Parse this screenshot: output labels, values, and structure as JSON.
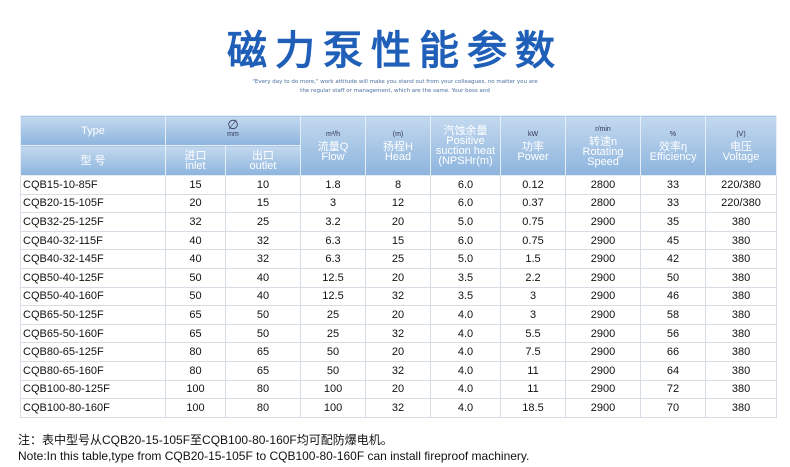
{
  "header": {
    "title": "磁力泵性能参数",
    "slogan": [
      "\"Every day to do more,\" work attitude will make you stand out from your colleagues, no matter you are",
      "the regular staff or management, which are the same. Your boss and"
    ]
  },
  "table": {
    "columns": [
      {
        "en": "Type",
        "cn": "型 号"
      },
      {
        "cn": "进口",
        "en": "inlet"
      },
      {
        "cn": "出口",
        "en": "outlet"
      },
      {
        "unit": "m³/h",
        "cn": "流量Q",
        "en": "Flow"
      },
      {
        "unit": "(m)",
        "cn": "扬程H",
        "en": "Head"
      },
      {
        "cn": "汽蚀余量",
        "en": "Positive suction heat (NPSHr(m)"
      },
      {
        "unit": "kW",
        "cn": "功率",
        "en": "Power"
      },
      {
        "unit": "r/min",
        "cn": "转速n",
        "en": "Rotating Speed"
      },
      {
        "unit": "%",
        "cn": "效率η",
        "en": "Efficiency"
      },
      {
        "unit": "(V)",
        "cn": "电压",
        "en": "Voltage"
      }
    ],
    "diameter_group": {
      "symbol": "∅",
      "unit": "mm"
    },
    "rows": [
      [
        "CQB15-10-85F",
        "15",
        "10",
        "1.8",
        "8",
        "6.0",
        "0.12",
        "2800",
        "33",
        "220/380"
      ],
      [
        "CQB20-15-105F",
        "20",
        "15",
        "3",
        "12",
        "6.0",
        "0.37",
        "2800",
        "33",
        "220/380"
      ],
      [
        "CQB32-25-125F",
        "32",
        "25",
        "3.2",
        "20",
        "5.0",
        "0.75",
        "2900",
        "35",
        "380"
      ],
      [
        "CQB40-32-115F",
        "40",
        "32",
        "6.3",
        "15",
        "6.0",
        "0.75",
        "2900",
        "45",
        "380"
      ],
      [
        "CQB40-32-145F",
        "40",
        "32",
        "6.3",
        "25",
        "5.0",
        "1.5",
        "2900",
        "42",
        "380"
      ],
      [
        "CQB50-40-125F",
        "50",
        "40",
        "12.5",
        "20",
        "3.5",
        "2.2",
        "2900",
        "50",
        "380"
      ],
      [
        "CQB50-40-160F",
        "50",
        "40",
        "12.5",
        "32",
        "3.5",
        "3",
        "2900",
        "46",
        "380"
      ],
      [
        "CQB65-50-125F",
        "65",
        "50",
        "25",
        "20",
        "4.0",
        "3",
        "2900",
        "58",
        "380"
      ],
      [
        "CQB65-50-160F",
        "65",
        "50",
        "25",
        "32",
        "4.0",
        "5.5",
        "2900",
        "56",
        "380"
      ],
      [
        "CQB80-65-125F",
        "80",
        "65",
        "50",
        "20",
        "4.0",
        "7.5",
        "2900",
        "66",
        "380"
      ],
      [
        "CQB80-65-160F",
        "80",
        "65",
        "50",
        "32",
        "4.0",
        "11",
        "2900",
        "64",
        "380"
      ],
      [
        "CQB100-80-125F",
        "100",
        "80",
        "100",
        "20",
        "4.0",
        "11",
        "2900",
        "72",
        "380"
      ],
      [
        "CQB100-80-160F",
        "100",
        "80",
        "100",
        "32",
        "4.0",
        "18.5",
        "2900",
        "70",
        "380"
      ]
    ]
  },
  "notes": [
    "注：表中型号从CQB20-15-105F至CQB100-80-160F均可配防爆电机。",
    "Note:In this table,type from CQB20-15-105F to CQB100-80-160F can install fireproof machinery."
  ]
}
